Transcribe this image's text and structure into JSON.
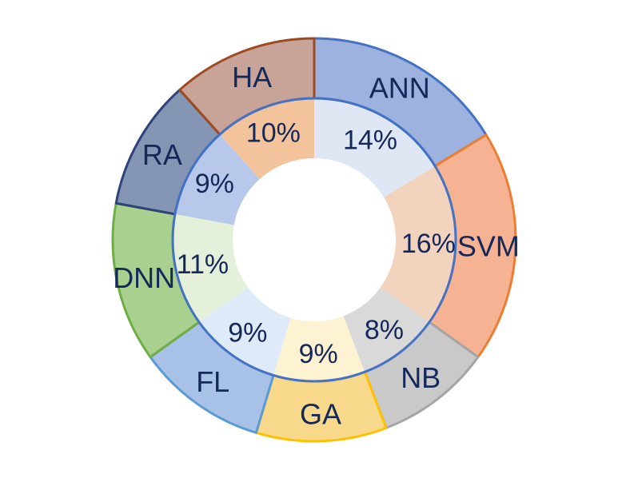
{
  "chart_data": {
    "type": "pie",
    "variant": "double-donut",
    "title": "",
    "categories": [
      "ANN",
      "SVM",
      "NB",
      "GA",
      "FL",
      "DNN",
      "RA",
      "HA"
    ],
    "values": [
      14,
      16,
      8,
      9,
      9,
      11,
      9,
      10
    ],
    "value_labels": [
      "14%",
      "16%",
      "8%",
      "9%",
      "9%",
      "11%",
      "9%",
      "10%"
    ],
    "unit": "%",
    "outer_ring": {
      "labels": [
        "ANN",
        "SVM",
        "NB",
        "GA",
        "FL",
        "DNN",
        "RA",
        "HA"
      ],
      "fills": [
        "#9db2de",
        "#f5b394",
        "#c9c9c9",
        "#f8d98c",
        "#a8c1e6",
        "#a9d08e",
        "#8596b4",
        "#c8a397"
      ],
      "strokes": [
        "#4472c4",
        "#ed7d31",
        "#a5a5a5",
        "#ffc000",
        "#5b9bd5",
        "#70ad47",
        "#2e4479",
        "#9e4a21"
      ]
    },
    "inner_ring": {
      "fills": [
        "#dfe6f4",
        "#f2d3bd",
        "#d9d9d9",
        "#fdf3d2",
        "#deeaf7",
        "#e4f0d9",
        "#b8c8ea",
        "#f3c49c"
      ],
      "stroke": "#4472c4"
    },
    "start_angle": "12 o'clock",
    "direction": "clockwise",
    "legend": "none"
  }
}
